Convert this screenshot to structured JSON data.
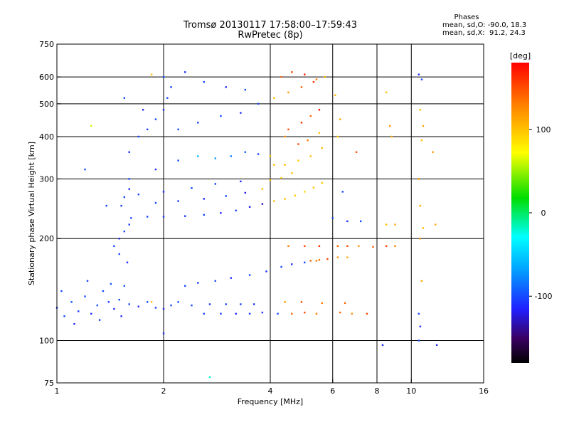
{
  "title_line1": "Tromsø 20130117 17:58:00–17:59:43",
  "title_line2": "RwPretec (8p)",
  "phases": {
    "header": "Phases",
    "line_o": "mean, sd,O: -90.0, 18.3",
    "line_x": "mean, sd,X:  91.2, 24.3"
  },
  "colorbar": {
    "label": "[deg]",
    "ticks": [
      {
        "value": 100,
        "label": "100"
      },
      {
        "value": 0,
        "label": "0"
      },
      {
        "value": -100,
        "label": "-100"
      }
    ],
    "range": [
      -180,
      180
    ]
  },
  "chart_data": {
    "type": "scatter",
    "xlabel": "Frequency [MHz]",
    "ylabel": "Stationary phase Virtual Height [km]",
    "x_scale": "log",
    "y_scale": "log",
    "xlim": [
      1,
      16
    ],
    "ylim": [
      75,
      750
    ],
    "x_ticks": [
      {
        "value": 1,
        "label": "1"
      },
      {
        "value": 2,
        "label": "2"
      },
      {
        "value": 4,
        "label": "4"
      },
      {
        "value": 6,
        "label": "6"
      },
      {
        "value": 8,
        "label": "8"
      },
      {
        "value": 10,
        "label": "10"
      },
      {
        "value": 16,
        "label": "16"
      }
    ],
    "y_ticks": [
      {
        "value": 75,
        "label": "75"
      },
      {
        "value": 100,
        "label": "100"
      },
      {
        "value": 200,
        "label": "200"
      },
      {
        "value": 300,
        "label": "300"
      },
      {
        "value": 400,
        "label": "400"
      },
      {
        "value": 500,
        "label": "500"
      },
      {
        "value": 600,
        "label": "600"
      },
      {
        "value": 750,
        "label": "750"
      }
    ],
    "grid_x": [
      2,
      4,
      6,
      8,
      10
    ],
    "grid_y": [
      100,
      200,
      300,
      400,
      500,
      600
    ],
    "points": [
      [
        1.0,
        125,
        -110
      ],
      [
        1.05,
        118,
        -100
      ],
      [
        1.1,
        130,
        -95
      ],
      [
        1.15,
        122,
        -105
      ],
      [
        1.2,
        135,
        -100
      ],
      [
        1.25,
        120,
        -110
      ],
      [
        1.3,
        127,
        -95
      ],
      [
        1.35,
        140,
        -100
      ],
      [
        1.4,
        130,
        -105
      ],
      [
        1.45,
        124,
        -110
      ],
      [
        1.5,
        132,
        -100
      ],
      [
        1.55,
        145,
        -95
      ],
      [
        1.6,
        128,
        -100
      ],
      [
        1.7,
        126,
        -110
      ],
      [
        1.8,
        130,
        -100
      ],
      [
        1.9,
        125,
        -105
      ],
      [
        2.0,
        124,
        -110
      ],
      [
        2.1,
        127,
        -100
      ],
      [
        2.2,
        130,
        -95
      ],
      [
        1.03,
        140,
        -100
      ],
      [
        1.12,
        112,
        -110
      ],
      [
        1.22,
        150,
        -100
      ],
      [
        1.32,
        115,
        -105
      ],
      [
        1.42,
        147,
        -95
      ],
      [
        1.52,
        118,
        -110
      ],
      [
        2.3,
        145,
        -100
      ],
      [
        2.5,
        148,
        -105
      ],
      [
        2.8,
        150,
        -100
      ],
      [
        3.1,
        153,
        -110
      ],
      [
        3.5,
        156,
        -100
      ],
      [
        3.9,
        160,
        -105
      ],
      [
        4.3,
        165,
        -100
      ],
      [
        4.6,
        168,
        -110
      ],
      [
        5.0,
        170,
        -100
      ],
      [
        5.4,
        172,
        130
      ],
      [
        2.4,
        127,
        -100
      ],
      [
        2.7,
        128,
        -110
      ],
      [
        3.0,
        128,
        -100
      ],
      [
        3.3,
        128,
        -105
      ],
      [
        3.6,
        128,
        -110
      ],
      [
        2.6,
        120,
        -100
      ],
      [
        2.9,
        120,
        -105
      ],
      [
        3.2,
        120,
        -110
      ],
      [
        3.5,
        120,
        -100
      ],
      [
        3.8,
        121,
        -105
      ],
      [
        4.2,
        120,
        -100
      ],
      [
        4.6,
        120,
        140
      ],
      [
        5.0,
        121,
        150
      ],
      [
        5.4,
        120,
        130
      ],
      [
        6.3,
        121,
        140
      ],
      [
        6.8,
        120,
        120
      ],
      [
        7.5,
        120,
        150
      ],
      [
        4.4,
        130,
        120
      ],
      [
        4.9,
        130,
        150
      ],
      [
        5.6,
        129,
        130
      ],
      [
        6.5,
        129,
        140
      ],
      [
        4.5,
        190,
        130
      ],
      [
        5.0,
        190,
        150
      ],
      [
        5.5,
        190,
        160
      ],
      [
        6.2,
        190,
        140
      ],
      [
        6.6,
        190,
        150
      ],
      [
        7.1,
        190,
        120
      ],
      [
        7.8,
        189,
        140
      ],
      [
        8.5,
        190,
        150
      ],
      [
        9.0,
        190,
        130
      ],
      [
        5.2,
        172,
        140
      ],
      [
        5.5,
        173,
        130
      ],
      [
        5.8,
        174,
        150
      ],
      [
        6.2,
        176,
        120
      ],
      [
        6.6,
        176,
        110
      ],
      [
        1.45,
        190,
        -100
      ],
      [
        1.5,
        200,
        -110
      ],
      [
        1.55,
        210,
        -100
      ],
      [
        1.6,
        220,
        -105
      ],
      [
        1.5,
        180,
        -100
      ],
      [
        1.58,
        170,
        -110
      ],
      [
        1.62,
        230,
        -100
      ],
      [
        1.52,
        250,
        -105
      ],
      [
        1.55,
        265,
        -100
      ],
      [
        1.6,
        280,
        -110
      ],
      [
        1.8,
        232,
        -100
      ],
      [
        2.0,
        232,
        -105
      ],
      [
        2.3,
        233,
        -110
      ],
      [
        2.6,
        235,
        -100
      ],
      [
        2.9,
        238,
        -110
      ],
      [
        3.2,
        242,
        -100
      ],
      [
        3.5,
        248,
        -120
      ],
      [
        3.8,
        253,
        -130
      ],
      [
        4.1,
        258,
        100
      ],
      [
        4.4,
        262,
        100
      ],
      [
        4.7,
        268,
        95
      ],
      [
        5.0,
        275,
        90
      ],
      [
        5.3,
        283,
        100
      ],
      [
        5.6,
        292,
        95
      ],
      [
        1.9,
        255,
        -100
      ],
      [
        2.2,
        258,
        -105
      ],
      [
        2.6,
        262,
        -110
      ],
      [
        3.0,
        267,
        -100
      ],
      [
        3.4,
        273,
        -120
      ],
      [
        3.8,
        280,
        100
      ],
      [
        1.7,
        270,
        -100
      ],
      [
        2.0,
        275,
        -110
      ],
      [
        2.4,
        282,
        -100
      ],
      [
        2.8,
        290,
        -105
      ],
      [
        3.3,
        295,
        -110
      ],
      [
        1.6,
        300,
        -100
      ],
      [
        1.9,
        320,
        -110
      ],
      [
        2.2,
        340,
        -100
      ],
      [
        2.5,
        350,
        -60
      ],
      [
        2.8,
        345,
        -70
      ],
      [
        3.1,
        350,
        -80
      ],
      [
        3.4,
        360,
        -90
      ],
      [
        3.7,
        355,
        -100
      ],
      [
        4.0,
        350,
        100
      ],
      [
        4.4,
        330,
        100
      ],
      [
        4.8,
        340,
        95
      ],
      [
        5.2,
        350,
        100
      ],
      [
        5.6,
        370,
        100
      ],
      [
        1.6,
        360,
        -110
      ],
      [
        1.7,
        400,
        -100
      ],
      [
        1.8,
        420,
        -105
      ],
      [
        1.9,
        450,
        -100
      ],
      [
        2.0,
        480,
        -110
      ],
      [
        2.05,
        520,
        -100
      ],
      [
        2.1,
        560,
        -105
      ],
      [
        2.0,
        600,
        -100
      ],
      [
        2.3,
        620,
        -110
      ],
      [
        2.6,
        580,
        -100
      ],
      [
        3.0,
        560,
        -110
      ],
      [
        3.4,
        550,
        -100
      ],
      [
        1.55,
        520,
        -100
      ],
      [
        1.75,
        480,
        -110
      ],
      [
        2.2,
        420,
        -100
      ],
      [
        2.5,
        440,
        -105
      ],
      [
        2.9,
        460,
        -100
      ],
      [
        3.3,
        470,
        -110
      ],
      [
        3.7,
        500,
        -100
      ],
      [
        4.1,
        520,
        100
      ],
      [
        4.5,
        540,
        120
      ],
      [
        4.9,
        560,
        140
      ],
      [
        5.3,
        580,
        160
      ],
      [
        5.7,
        600,
        100
      ],
      [
        4.3,
        600,
        140
      ],
      [
        4.6,
        620,
        150
      ],
      [
        5.0,
        610,
        170
      ],
      [
        5.4,
        590,
        130
      ],
      [
        4.5,
        420,
        150
      ],
      [
        4.9,
        440,
        160
      ],
      [
        5.2,
        460,
        140
      ],
      [
        5.5,
        480,
        170
      ],
      [
        4.4,
        400,
        120
      ],
      [
        4.8,
        380,
        150
      ],
      [
        5.1,
        390,
        130
      ],
      [
        5.5,
        410,
        100
      ],
      [
        6.1,
        530,
        100
      ],
      [
        6.3,
        450,
        110
      ],
      [
        6.2,
        400,
        100
      ],
      [
        6.0,
        230,
        -100
      ],
      [
        6.6,
        225,
        -110
      ],
      [
        7.2,
        225,
        -100
      ],
      [
        6.4,
        275,
        -100
      ],
      [
        7.0,
        360,
        150
      ],
      [
        8.5,
        540,
        100
      ],
      [
        8.7,
        430,
        120
      ],
      [
        8.8,
        400,
        110
      ],
      [
        8.5,
        220,
        100
      ],
      [
        9.0,
        220,
        110
      ],
      [
        10.5,
        610,
        -110
      ],
      [
        10.7,
        590,
        -100
      ],
      [
        10.6,
        480,
        100
      ],
      [
        10.8,
        430,
        110
      ],
      [
        10.7,
        390,
        100
      ],
      [
        10.5,
        300,
        120
      ],
      [
        10.6,
        250,
        110
      ],
      [
        10.8,
        215,
        100
      ],
      [
        10.6,
        200,
        120
      ],
      [
        10.7,
        150,
        110
      ],
      [
        10.5,
        120,
        -100
      ],
      [
        10.6,
        110,
        -110
      ],
      [
        10.5,
        100,
        -100
      ],
      [
        11.5,
        360,
        120
      ],
      [
        11.7,
        220,
        110
      ],
      [
        11.8,
        97,
        -110
      ],
      [
        8.3,
        97,
        -110
      ],
      [
        2.7,
        78,
        -20
      ],
      [
        2.0,
        105,
        -110
      ],
      [
        1.85,
        130,
        100
      ],
      [
        1.85,
        610,
        100
      ],
      [
        1.25,
        430,
        60
      ],
      [
        1.2,
        320,
        -100
      ],
      [
        1.38,
        250,
        -100
      ],
      [
        4.1,
        330,
        100
      ],
      [
        4.3,
        302,
        95
      ],
      [
        4.6,
        312,
        100
      ],
      [
        4.0,
        298,
        100
      ]
    ]
  }
}
